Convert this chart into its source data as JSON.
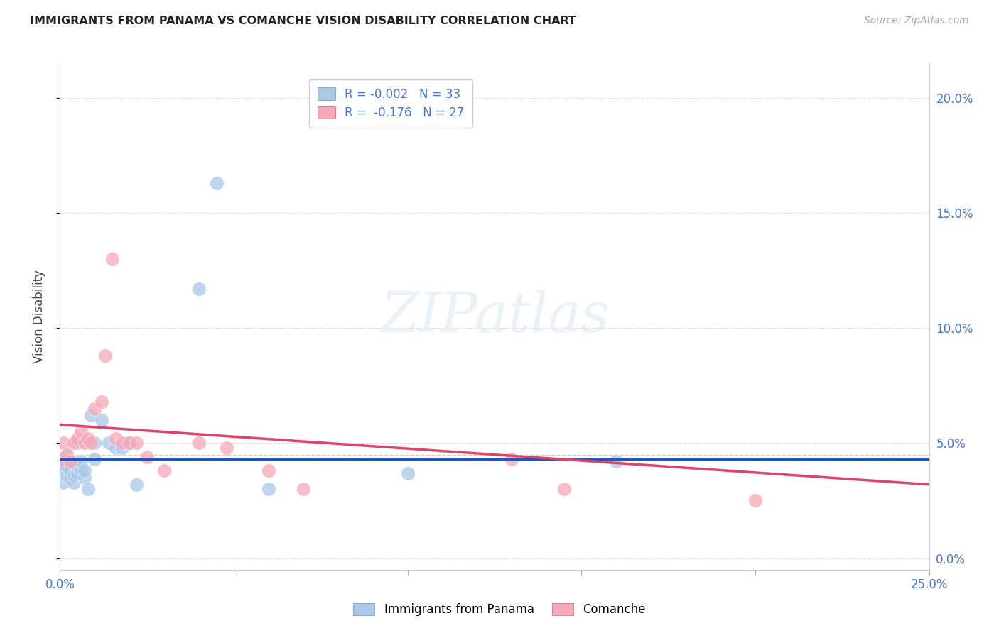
{
  "title": "IMMIGRANTS FROM PANAMA VS COMANCHE VISION DISABILITY CORRELATION CHART",
  "source": "Source: ZipAtlas.com",
  "ylabel_label": "Vision Disability",
  "xlim": [
    0.0,
    0.25
  ],
  "ylim": [
    -0.005,
    0.215
  ],
  "xticks": [
    0.0,
    0.05,
    0.1,
    0.15,
    0.2,
    0.25
  ],
  "yticks": [
    0.0,
    0.05,
    0.1,
    0.15,
    0.2
  ],
  "blue_color": "#aac8e8",
  "pink_color": "#f5a8b8",
  "blue_line_color": "#2255bb",
  "pink_line_color": "#dd4466",
  "legend_blue_R": "R = -0.002",
  "legend_blue_N": "N = 33",
  "legend_pink_R": "R =  -0.176",
  "legend_pink_N": "N = 27",
  "watermark": "ZIPatlas",
  "blue_points_x": [
    0.001,
    0.001,
    0.001,
    0.002,
    0.002,
    0.002,
    0.003,
    0.003,
    0.003,
    0.004,
    0.004,
    0.005,
    0.005,
    0.005,
    0.006,
    0.006,
    0.007,
    0.007,
    0.008,
    0.009,
    0.01,
    0.01,
    0.012,
    0.014,
    0.016,
    0.018,
    0.02,
    0.022,
    0.04,
    0.045,
    0.06,
    0.1,
    0.16
  ],
  "blue_points_y": [
    0.038,
    0.04,
    0.033,
    0.036,
    0.04,
    0.045,
    0.035,
    0.038,
    0.042,
    0.033,
    0.036,
    0.037,
    0.04,
    0.05,
    0.038,
    0.042,
    0.035,
    0.038,
    0.03,
    0.062,
    0.05,
    0.043,
    0.06,
    0.05,
    0.048,
    0.048,
    0.05,
    0.032,
    0.117,
    0.163,
    0.03,
    0.037,
    0.042
  ],
  "pink_points_x": [
    0.001,
    0.001,
    0.002,
    0.003,
    0.004,
    0.005,
    0.006,
    0.007,
    0.008,
    0.009,
    0.01,
    0.012,
    0.013,
    0.015,
    0.016,
    0.018,
    0.02,
    0.022,
    0.025,
    0.03,
    0.04,
    0.048,
    0.06,
    0.07,
    0.13,
    0.145,
    0.2
  ],
  "pink_points_y": [
    0.043,
    0.05,
    0.045,
    0.042,
    0.05,
    0.052,
    0.055,
    0.05,
    0.052,
    0.05,
    0.065,
    0.068,
    0.088,
    0.13,
    0.052,
    0.05,
    0.05,
    0.05,
    0.044,
    0.038,
    0.05,
    0.048,
    0.038,
    0.03,
    0.043,
    0.03,
    0.025
  ],
  "blue_trend_x": [
    0.0,
    0.25
  ],
  "blue_trend_y": [
    0.043,
    0.043
  ],
  "pink_trend_x": [
    0.0,
    0.25
  ],
  "pink_trend_y": [
    0.058,
    0.032
  ],
  "dashed_line_y": 0.045,
  "grid_color": "#dddddd",
  "spine_color": "#cccccc"
}
